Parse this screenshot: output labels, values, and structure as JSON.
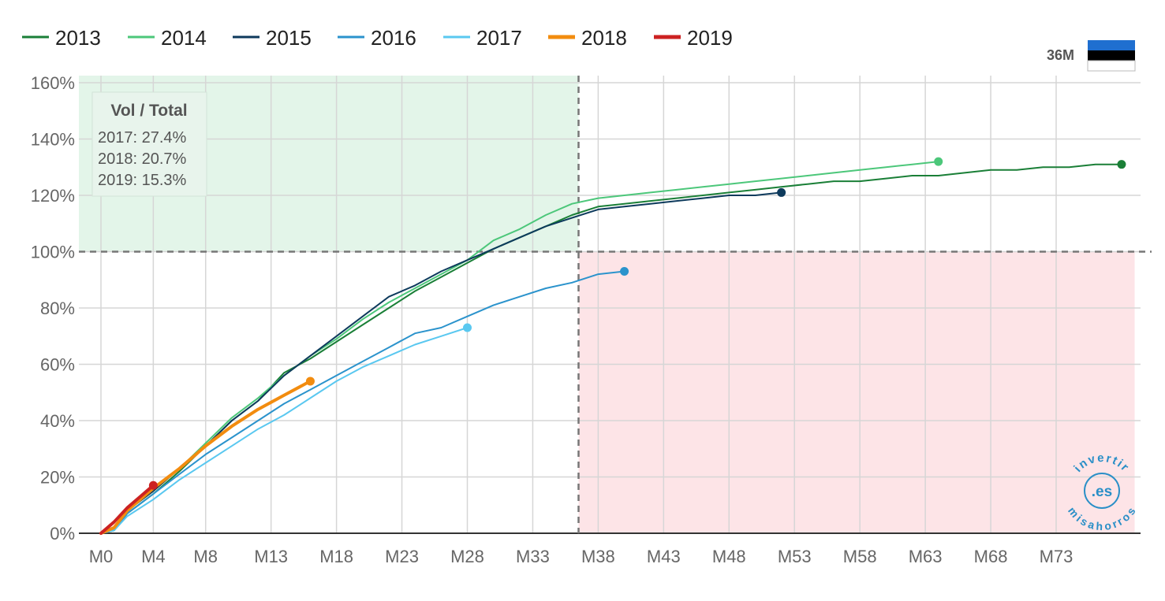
{
  "chart_data": {
    "type": "line",
    "title": "",
    "xlabel": "",
    "ylabel": "",
    "x_ticks": [
      "M0",
      "M4",
      "M8",
      "M13",
      "M18",
      "M23",
      "M28",
      "M33",
      "M38",
      "M43",
      "M48",
      "M53",
      "M58",
      "M63",
      "M68",
      "M73"
    ],
    "x_tick_values": [
      0,
      4,
      8,
      13,
      18,
      23,
      28,
      33,
      38,
      43,
      48,
      53,
      58,
      63,
      68,
      73
    ],
    "xlim": [
      0,
      78
    ],
    "y_ticks": [
      "0%",
      "20%",
      "40%",
      "60%",
      "80%",
      "100%",
      "120%",
      "140%",
      "160%"
    ],
    "y_tick_values": [
      0,
      20,
      40,
      60,
      80,
      100,
      120,
      140,
      160
    ],
    "ylim": [
      0,
      160
    ],
    "grid": true,
    "legend_position": "top-left",
    "reference_lines": {
      "x": 36.5,
      "y": 100
    },
    "zones": [
      {
        "name": "above-target",
        "x": [
          0,
          36.5
        ],
        "y": [
          100,
          160
        ],
        "color": "#e3f5e9"
      },
      {
        "name": "below-target",
        "x": [
          36.5,
          79
        ],
        "y": [
          0,
          100
        ],
        "color": "#fde4e7"
      }
    ],
    "series": [
      {
        "name": "2013",
        "color": "#1a7f37",
        "width": 2,
        "x": [
          0,
          1,
          2,
          4,
          6,
          8,
          10,
          12,
          14,
          16,
          18,
          20,
          22,
          24,
          26,
          28,
          30,
          32,
          34,
          36,
          38,
          40,
          42,
          44,
          46,
          48,
          50,
          52,
          54,
          56,
          58,
          60,
          62,
          64,
          66,
          68,
          70,
          72,
          74,
          76,
          78
        ],
        "y": [
          0,
          1,
          7,
          14,
          22,
          31,
          40,
          47,
          57,
          62,
          68,
          74,
          80,
          86,
          91,
          96,
          101,
          105,
          109,
          113,
          116,
          117,
          118,
          119,
          120,
          121,
          122,
          123,
          124,
          125,
          125,
          126,
          127,
          127,
          128,
          129,
          129,
          130,
          130,
          131,
          131
        ]
      },
      {
        "name": "2014",
        "color": "#4cc77a",
        "width": 2,
        "x": [
          0,
          1,
          2,
          4,
          6,
          8,
          10,
          12,
          14,
          16,
          18,
          20,
          22,
          24,
          26,
          28,
          30,
          32,
          34,
          36,
          38,
          40,
          42,
          44,
          46,
          48,
          50,
          52,
          54,
          56,
          58,
          60,
          62,
          64
        ],
        "y": [
          0,
          1,
          8,
          15,
          23,
          32,
          41,
          48,
          56,
          63,
          69,
          76,
          82,
          87,
          92,
          97,
          104,
          108,
          113,
          117,
          119,
          120,
          121,
          122,
          123,
          124,
          125,
          126,
          127,
          128,
          129,
          130,
          131,
          132
        ]
      },
      {
        "name": "2015",
        "color": "#0d3a5c",
        "width": 2,
        "x": [
          0,
          1,
          2,
          4,
          6,
          8,
          10,
          12,
          14,
          16,
          18,
          20,
          22,
          24,
          26,
          28,
          30,
          32,
          34,
          36,
          38,
          40,
          42,
          44,
          46,
          48,
          50,
          52
        ],
        "y": [
          0,
          1,
          8,
          15,
          23,
          31,
          40,
          47,
          56,
          63,
          70,
          77,
          84,
          88,
          93,
          97,
          101,
          105,
          109,
          112,
          115,
          116,
          117,
          118,
          119,
          120,
          120,
          121
        ]
      },
      {
        "name": "2016",
        "color": "#2b93cc",
        "width": 2,
        "x": [
          0,
          1,
          2,
          4,
          6,
          8,
          10,
          12,
          14,
          16,
          18,
          20,
          22,
          24,
          26,
          28,
          30,
          32,
          34,
          36,
          38,
          40
        ],
        "y": [
          0,
          1,
          7,
          14,
          21,
          28,
          34,
          40,
          46,
          51,
          56,
          61,
          66,
          71,
          73,
          77,
          81,
          84,
          87,
          89,
          92,
          93
        ]
      },
      {
        "name": "2017",
        "color": "#5ac8f0",
        "width": 2,
        "x": [
          0,
          1,
          2,
          4,
          6,
          8,
          10,
          12,
          14,
          16,
          18,
          20,
          22,
          24,
          26,
          28
        ],
        "y": [
          0,
          1,
          6,
          12,
          19,
          25,
          31,
          37,
          42,
          48,
          54,
          59,
          63,
          67,
          70,
          73
        ]
      },
      {
        "name": "2018",
        "color": "#f28c0f",
        "width": 4,
        "x": [
          0,
          1,
          2,
          4,
          6,
          8,
          10,
          12,
          14,
          16
        ],
        "y": [
          0,
          2,
          8,
          16,
          23,
          31,
          38,
          44,
          49,
          54
        ]
      },
      {
        "name": "2019",
        "color": "#cc2222",
        "width": 4,
        "x": [
          0,
          1,
          2,
          3,
          4
        ],
        "y": [
          0,
          4,
          9,
          13,
          17
        ]
      }
    ]
  },
  "annotation": {
    "title": "Vol / Total",
    "lines": [
      "2017: 27.4%",
      "2018: 20.7%",
      "2019: 15.3%"
    ]
  },
  "badge": {
    "label": "36M",
    "flag_colors": [
      "#1f6fd0",
      "#000000",
      "#ffffff"
    ]
  },
  "watermark": {
    "top": "invertir",
    "middle": ".es",
    "bottom": "misahorros",
    "color": "#2a8fc7"
  }
}
